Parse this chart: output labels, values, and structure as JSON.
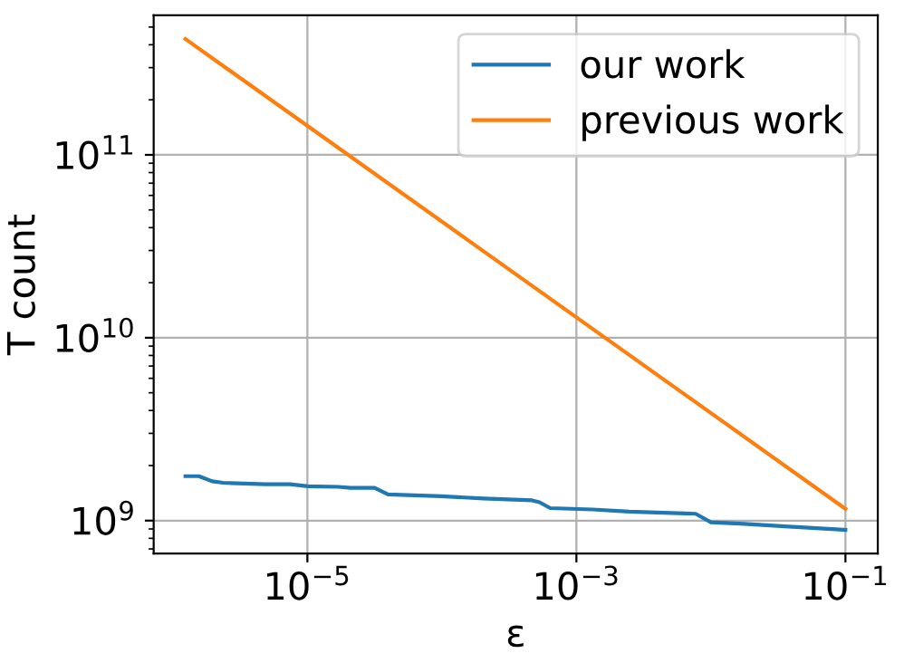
{
  "chart_data": {
    "type": "line",
    "xlabel": "ε",
    "ylabel": "T count",
    "log": "xy",
    "grid": true,
    "legend": "top right",
    "xlim": [
      7.2e-07,
      0.174
    ],
    "ylim": [
      660000000.0,
      580000000000.0
    ],
    "xticks": [
      {
        "value": 1e-05,
        "label": "10$^{−5}$"
      },
      {
        "value": 0.001,
        "label": "10$^{−3}$"
      },
      {
        "value": 0.1,
        "label": "10$^{−1}$"
      }
    ],
    "yticks": [
      {
        "value": 1000000000.0,
        "label": "10$^{9}$"
      },
      {
        "value": 10000000000.0,
        "label": "10$^{10}$"
      },
      {
        "value": 100000000000.0,
        "label": "10$^{11}$"
      }
    ],
    "series": [
      {
        "name": "our work",
        "color": "#1f77b4",
        "x": [
          1.24e-06,
          1.56e-06,
          1.96e-06,
          2.36e-06,
          4.89e-06,
          7.4e-06,
          1.01e-05,
          1.7e-05,
          2.09e-05,
          3.16e-05,
          3.98e-05,
          9.9e-05,
          0.000204,
          0.000468,
          0.000531,
          0.00064,
          0.00132,
          0.00247,
          0.0077,
          0.01,
          0.0177,
          0.0355,
          0.1
        ],
        "values": [
          1750000000.0,
          1750000000.0,
          1640000000.0,
          1610000000.0,
          1580000000.0,
          1580000000.0,
          1540000000.0,
          1530000000.0,
          1510000000.0,
          1510000000.0,
          1390000000.0,
          1360000000.0,
          1320000000.0,
          1290000000.0,
          1260000000.0,
          1170000000.0,
          1150000000.0,
          1120000000.0,
          1090000000.0,
          980000000.0,
          960000000.0,
          930000000.0,
          890000000.0
        ]
      },
      {
        "name": "previous work",
        "color": "#ff7f0e",
        "x": [
          1.24e-06,
          0.1
        ],
        "values": [
          430000000000.0,
          1160000000.0
        ]
      }
    ]
  }
}
